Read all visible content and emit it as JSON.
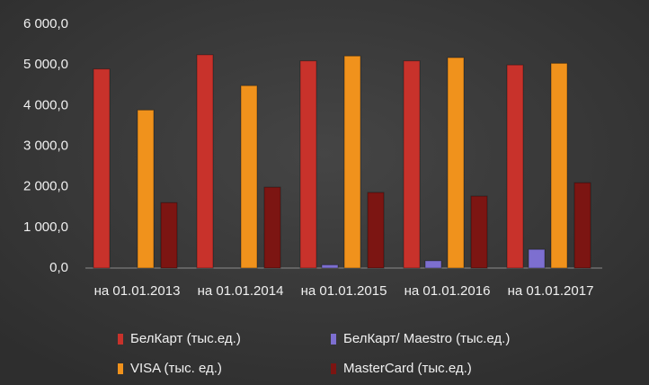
{
  "chart_data": {
    "type": "bar",
    "categories": [
      "на 01.01.2013",
      "на 01.01.2014",
      "на 01.01.2015",
      "на 01.01.2016",
      "на 01.01.2017"
    ],
    "series": [
      {
        "name": "БелКарт (тыс.ед.)",
        "color": "#c8322b",
        "values": [
          4900,
          5250,
          5100,
          5100,
          5000
        ]
      },
      {
        "name": "БелКарт/ Maestro (тыс.ед.)",
        "color": "#7d6fd0",
        "values": [
          0,
          0,
          80,
          180,
          460
        ]
      },
      {
        "name": "VISA (тыс. ед.)",
        "color": "#f0921c",
        "values": [
          3890,
          4490,
          5220,
          5180,
          5040
        ]
      },
      {
        "name": "MasterCard (тыс.ед.)",
        "color": "#7c1512",
        "values": [
          1610,
          1990,
          1860,
          1770,
          2100
        ]
      }
    ],
    "ylim": [
      0,
      6000
    ],
    "yticks": [
      {
        "value": 0,
        "label": "0,0"
      },
      {
        "value": 1000,
        "label": "1 000,0"
      },
      {
        "value": 2000,
        "label": "2 000,0"
      },
      {
        "value": 3000,
        "label": "3 000,0"
      },
      {
        "value": 4000,
        "label": "4 000,0"
      },
      {
        "value": 5000,
        "label": "5 000,0"
      },
      {
        "value": 6000,
        "label": "6 000,0"
      }
    ],
    "grid": false
  }
}
